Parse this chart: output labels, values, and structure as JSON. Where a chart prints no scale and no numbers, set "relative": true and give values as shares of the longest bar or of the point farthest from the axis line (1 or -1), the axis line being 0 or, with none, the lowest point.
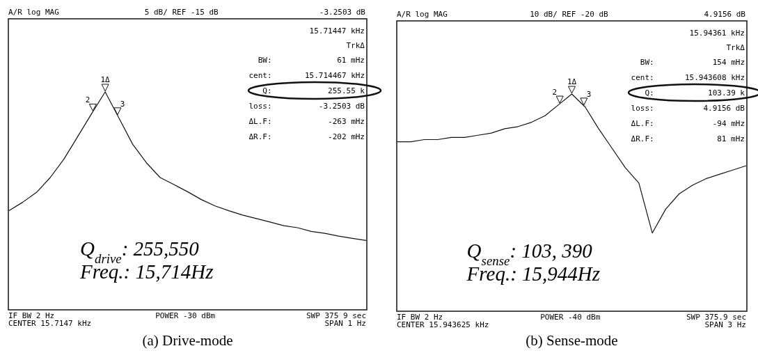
{
  "chart_data": [
    {
      "type": "line",
      "title": "(a) Drive-mode",
      "relative": true,
      "color": "#111111",
      "categories": [
        null,
        null,
        null,
        null,
        null,
        null,
        null,
        null,
        null,
        null,
        null,
        null,
        null,
        null,
        null,
        null,
        null,
        null,
        null,
        null,
        null,
        null,
        null,
        null,
        null,
        null,
        null
      ],
      "values": [
        0.455,
        0.494,
        0.539,
        0.607,
        0.692,
        0.795,
        0.899,
        1,
        0.88,
        0.76,
        0.675,
        0.607,
        0.575,
        0.542,
        0.506,
        0.477,
        0.455,
        0.435,
        0.419,
        0.403,
        0.386,
        0.377,
        0.36,
        0.351,
        0.338,
        0.328,
        0.318
      ],
      "annotations": [
        "A/R  log MAG",
        "5 dB/ REF -15 dB",
        "-3.2503 dB",
        "15.71447 kHz",
        "TrkΔ",
        "BW:",
        "61 mHz",
        "cent:",
        "15.714467 kHz",
        "Q:",
        "255.55 k",
        "loss:",
        "-3.2503 dB",
        "ΔL.F:",
        "-263 mHz",
        "ΔR.F:",
        "-202 mHz",
        "IF BW 2 Hz",
        "CENTER  15.7147 kHz",
        "POWER -30 dBm",
        "SWP  375 9 sec",
        "SPAN  1 Hz",
        "Q$_{drive}$: 255,550",
        "Freq.: 15,714Hz",
        "2",
        "1Δ",
        "3"
      ]
    },
    {
      "type": "line",
      "title": "(b) Sense-mode",
      "relative": true,
      "color": "#111111",
      "categories": [
        null,
        null,
        null,
        null,
        null,
        null,
        null,
        null,
        null,
        null,
        null,
        null,
        null,
        null,
        null,
        null,
        null,
        null,
        null,
        null,
        null,
        null,
        null,
        null,
        null,
        null,
        null
      ],
      "values": [
        0.78,
        0.78,
        0.79,
        0.79,
        0.8,
        0.8,
        0.81,
        0.82,
        0.84,
        0.85,
        0.87,
        0.9,
        0.95,
        1,
        0.94,
        0.84,
        0.75,
        0.66,
        0.59,
        0.36,
        0.47,
        0.54,
        0.58,
        0.61,
        0.63,
        0.65,
        0.67
      ],
      "annotations": [
        "A/R  log MAG",
        "10 dB/ REF -20 dB",
        "4.9156 dB",
        "15.94361 kHz",
        "TrkΔ",
        "BW:",
        "154 mHz",
        "cent:",
        "15.943608 kHz",
        "Q:",
        "103.39 k",
        "loss:",
        "4.9156 dB",
        "ΔL.F:",
        "-94 mHz",
        "ΔR.F:",
        "81 mHz",
        "IF BW 2 Hz",
        "CENTER  15.943625 kHz",
        "POWER -40 dBm",
        "SWP  375.9 sec",
        "SPAN  3 Hz",
        "Q$_{sense}$: 103, 390",
        "Freq.: 15,944Hz",
        "2",
        "1Δ",
        "3"
      ]
    }
  ]
}
